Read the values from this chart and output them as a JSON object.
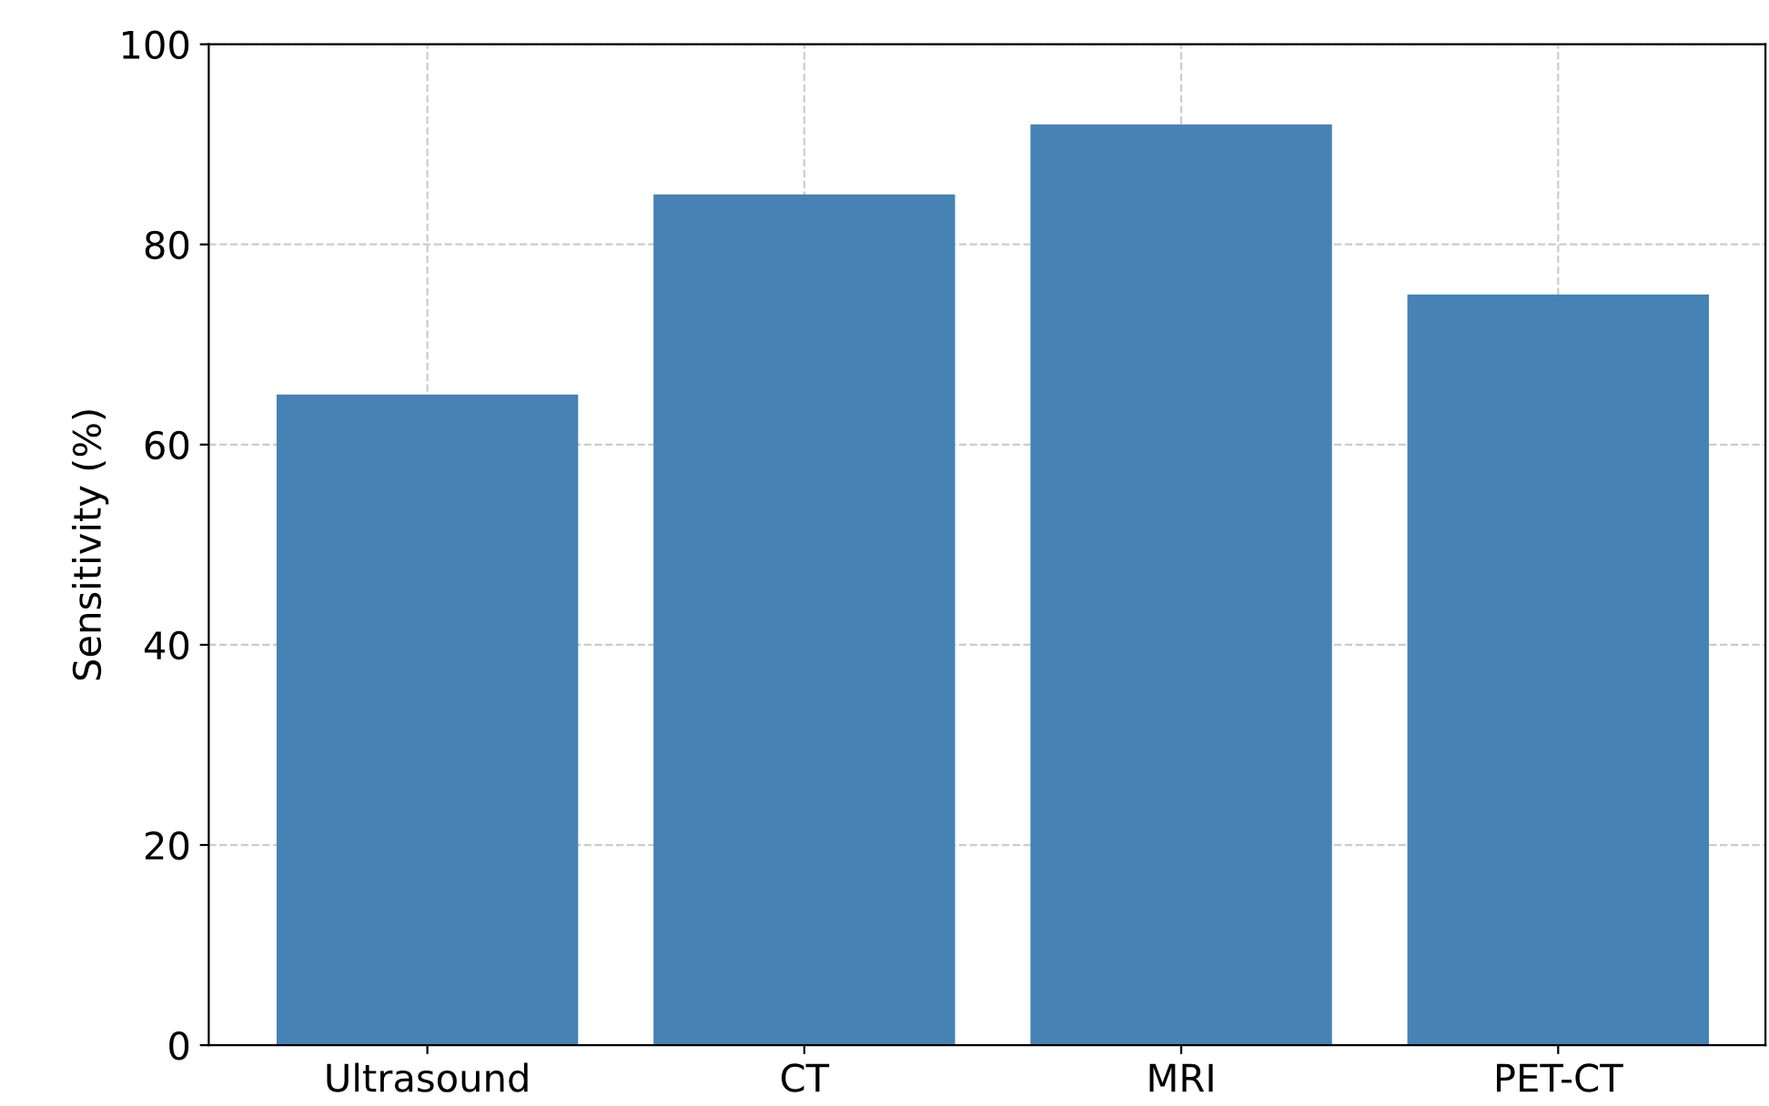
{
  "chart_data": {
    "type": "bar",
    "ylabel": "Sensitivity (%)",
    "categories": [
      "Ultrasound",
      "CT",
      "MRI",
      "PET-CT"
    ],
    "values": [
      65,
      85,
      92,
      75
    ],
    "color": "#4682b4",
    "ylim": [
      0,
      100
    ],
    "yticks": [
      0,
      20,
      40,
      60,
      80,
      100
    ],
    "grid": true
  }
}
